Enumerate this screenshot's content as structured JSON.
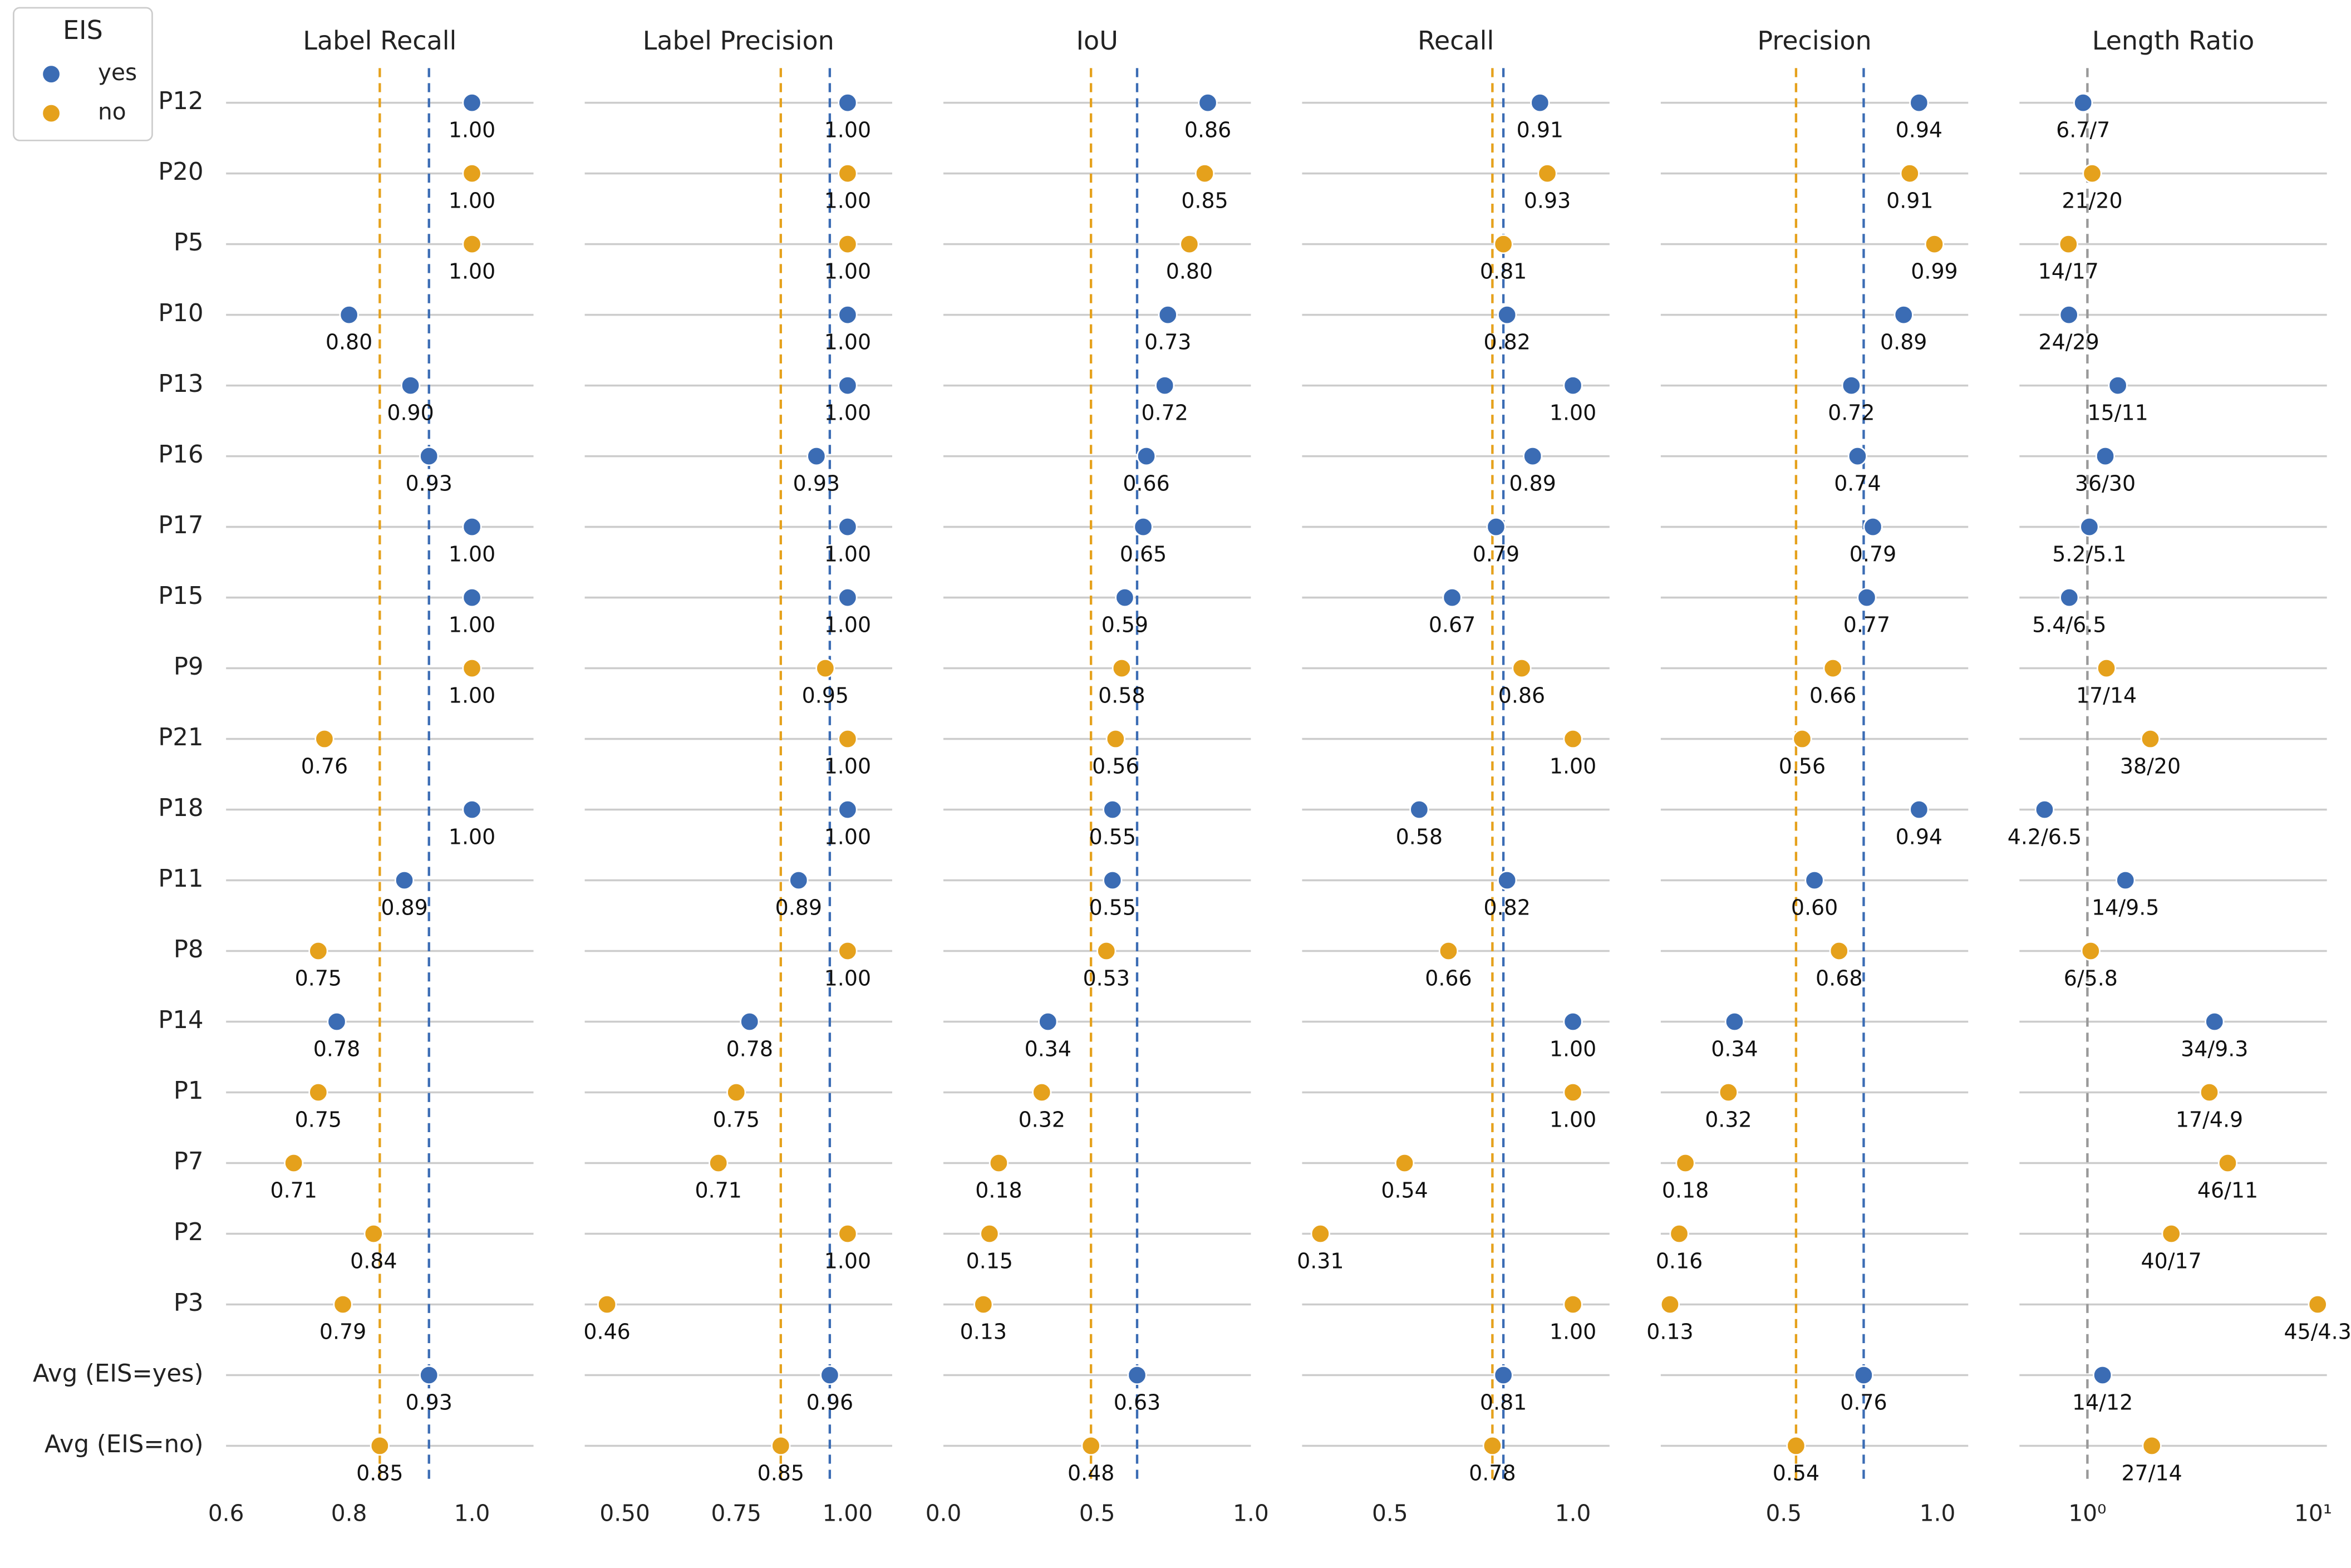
{
  "chart_data": [
    {
      "type": "dot",
      "title": "Label Recall",
      "legend_title": "EIS",
      "legend": "upper left",
      "mean_lines": true,
      "categories": [
        "P12",
        "P20",
        "P5",
        "P10",
        "P13",
        "P16",
        "P17",
        "P15",
        "P9",
        "P21",
        "P18",
        "P11",
        "P8",
        "P14",
        "P1",
        "P7",
        "P2",
        "P3",
        "Avg (EIS=yes)",
        "Avg (EIS=no)"
      ],
      "xlim": [
        0.6,
        1.1
      ],
      "xticks": [
        0.6,
        0.8,
        {
          "value": 1.0,
          "label": "1.0"
        }
      ],
      "series": [
        {
          "name": "yes",
          "color": "#3b6cb4",
          "values": [
            1,
            null,
            null,
            0.8,
            0.9,
            0.93,
            1,
            1,
            null,
            null,
            1,
            0.89,
            null,
            0.78,
            null,
            null,
            null,
            null,
            0.93,
            null
          ],
          "value_labels": [
            "1.00",
            null,
            null,
            "0.80",
            "0.90",
            "0.93",
            "1.00",
            "1.00",
            null,
            null,
            "1.00",
            "0.89",
            null,
            "0.78",
            null,
            null,
            null,
            null,
            "0.93",
            null
          ]
        },
        {
          "name": "no",
          "color": "#e5a11c",
          "values": [
            null,
            1,
            1,
            null,
            null,
            null,
            null,
            null,
            1,
            0.76,
            null,
            null,
            0.75,
            null,
            0.75,
            0.71,
            0.84,
            0.79,
            null,
            0.85
          ],
          "value_labels": [
            null,
            "1.00",
            "1.00",
            null,
            null,
            null,
            null,
            null,
            "1.00",
            "0.76",
            null,
            null,
            "0.75",
            null,
            "0.75",
            "0.71",
            "0.84",
            "0.79",
            null,
            "0.85"
          ]
        }
      ]
    },
    {
      "type": "dot",
      "title": "Label Precision",
      "mean_lines": true,
      "xlim": [
        0.41,
        1.1
      ],
      "xticks": [
        {
          "value": 0.5,
          "label": "0.50"
        },
        0.75,
        {
          "value": 1.0,
          "label": "1.00"
        }
      ],
      "series": [
        {
          "color": "#3b6cb4",
          "values": [
            1,
            null,
            null,
            1,
            1,
            0.93,
            1,
            1,
            null,
            null,
            1,
            0.89,
            null,
            0.78,
            null,
            null,
            null,
            null,
            0.96,
            null
          ],
          "value_labels": [
            "1.00",
            null,
            null,
            "1.00",
            "1.00",
            "0.93",
            "1.00",
            "1.00",
            null,
            null,
            "1.00",
            "0.89",
            null,
            "0.78",
            null,
            null,
            null,
            null,
            "0.96",
            null
          ]
        },
        {
          "color": "#e5a11c",
          "values": [
            null,
            1,
            1,
            null,
            null,
            null,
            null,
            null,
            0.95,
            1,
            null,
            null,
            1,
            null,
            0.75,
            0.71,
            1,
            0.46,
            null,
            0.85
          ],
          "value_labels": [
            null,
            "1.00",
            "1.00",
            null,
            null,
            null,
            null,
            null,
            "0.95",
            "1.00",
            null,
            null,
            "1.00",
            null,
            "0.75",
            "0.71",
            "1.00",
            "0.46",
            null,
            "0.85"
          ]
        }
      ]
    },
    {
      "type": "dot",
      "title": "IoU",
      "mean_lines": true,
      "xlim": [
        0,
        1
      ],
      "xticks": [
        {
          "value": 0,
          "label": "0.0"
        },
        0.5,
        {
          "value": 1,
          "label": "1.0"
        }
      ],
      "series": [
        {
          "color": "#3b6cb4",
          "values": [
            0.86,
            null,
            null,
            0.73,
            0.72,
            0.66,
            0.65,
            0.59,
            null,
            null,
            0.55,
            0.55,
            null,
            0.34,
            null,
            null,
            null,
            null,
            0.63,
            null
          ],
          "value_labels": [
            "0.86",
            null,
            null,
            "0.73",
            "0.72",
            "0.66",
            "0.65",
            "0.59",
            null,
            null,
            "0.55",
            "0.55",
            null,
            "0.34",
            null,
            null,
            null,
            null,
            "0.63",
            null
          ]
        },
        {
          "color": "#e5a11c",
          "values": [
            null,
            0.85,
            0.8,
            null,
            null,
            null,
            null,
            null,
            0.58,
            0.56,
            null,
            null,
            0.53,
            null,
            0.32,
            0.18,
            0.15,
            0.13,
            null,
            0.48
          ],
          "value_labels": [
            null,
            "0.85",
            "0.80",
            null,
            null,
            null,
            null,
            null,
            "0.58",
            "0.56",
            null,
            null,
            "0.53",
            null,
            "0.32",
            "0.18",
            "0.15",
            "0.13",
            null,
            "0.48"
          ]
        }
      ]
    },
    {
      "type": "dot",
      "title": "Recall",
      "mean_lines": true,
      "xlim": [
        0.26,
        1.1
      ],
      "xticks": [
        0.5,
        {
          "value": 1.0,
          "label": "1.0"
        }
      ],
      "series": [
        {
          "color": "#3b6cb4",
          "values": [
            0.91,
            null,
            null,
            0.82,
            1,
            0.89,
            0.79,
            0.67,
            null,
            null,
            0.58,
            0.82,
            null,
            1,
            null,
            null,
            null,
            null,
            0.81,
            null
          ],
          "value_labels": [
            "0.91",
            null,
            null,
            "0.82",
            "1.00",
            "0.89",
            "0.79",
            "0.67",
            null,
            null,
            "0.58",
            "0.82",
            null,
            "1.00",
            null,
            null,
            null,
            null,
            "0.81",
            null
          ]
        },
        {
          "color": "#e5a11c",
          "values": [
            null,
            0.93,
            0.81,
            null,
            null,
            null,
            null,
            null,
            0.86,
            1,
            null,
            null,
            0.66,
            null,
            1,
            0.54,
            0.31,
            1,
            null,
            0.78
          ],
          "value_labels": [
            null,
            "0.93",
            "0.81",
            null,
            null,
            null,
            null,
            null,
            "0.86",
            "1.00",
            null,
            null,
            "0.66",
            null,
            "1.00",
            "0.54",
            "0.31",
            "1.00",
            null,
            "0.78"
          ]
        }
      ]
    },
    {
      "type": "dot",
      "title": "Precision",
      "mean_lines": true,
      "xlim": [
        0.1,
        1.1
      ],
      "xticks": [
        0.5,
        {
          "value": 1.0,
          "label": "1.0"
        }
      ],
      "series": [
        {
          "color": "#3b6cb4",
          "values": [
            0.94,
            null,
            null,
            0.89,
            0.72,
            0.74,
            0.79,
            0.77,
            null,
            null,
            0.94,
            0.6,
            null,
            0.34,
            null,
            null,
            null,
            null,
            0.76,
            null
          ],
          "value_labels": [
            "0.94",
            null,
            null,
            "0.89",
            "0.72",
            "0.74",
            "0.79",
            "0.77",
            null,
            null,
            "0.94",
            "0.60",
            null,
            "0.34",
            null,
            null,
            null,
            null,
            "0.76",
            null
          ]
        },
        {
          "color": "#e5a11c",
          "values": [
            null,
            0.91,
            0.99,
            null,
            null,
            null,
            null,
            null,
            0.66,
            0.56,
            null,
            null,
            0.68,
            null,
            0.32,
            0.18,
            0.16,
            0.13,
            null,
            0.54
          ],
          "value_labels": [
            null,
            "0.91",
            "0.99",
            null,
            null,
            null,
            null,
            null,
            "0.66",
            "0.56",
            null,
            null,
            "0.68",
            null,
            "0.32",
            "0.18",
            "0.16",
            "0.13",
            null,
            "0.54"
          ]
        }
      ]
    },
    {
      "type": "dot",
      "title": "Length Ratio",
      "xscale": "log",
      "reference_line": 1,
      "reference_color": "#999999",
      "xlim": [
        0.5,
        11.5
      ],
      "xticks": [
        {
          "value": 1,
          "label": "10⁰"
        },
        {
          "value": 10,
          "label": "10¹"
        }
      ],
      "series": [
        {
          "color": "#3b6cb4",
          "values": [
            0.957,
            null,
            null,
            0.828,
            1.364,
            1.2,
            1.02,
            0.831,
            null,
            null,
            0.646,
            1.474,
            null,
            3.656,
            null,
            null,
            null,
            null,
            1.167,
            null
          ],
          "value_labels": [
            "6.7/7",
            null,
            null,
            "24/29",
            "15/11",
            "36/30",
            "5.2/5.1",
            "5.4/6.5",
            null,
            null,
            "4.2/6.5",
            "14/9.5",
            null,
            "34/9.3",
            null,
            null,
            null,
            null,
            "14/12",
            null
          ]
        },
        {
          "color": "#e5a11c",
          "values": [
            null,
            1.05,
            0.824,
            null,
            null,
            null,
            null,
            null,
            1.214,
            1.9,
            null,
            null,
            1.034,
            null,
            3.469,
            4.182,
            2.353,
            10.47,
            null,
            1.929
          ],
          "value_labels": [
            null,
            "21/20",
            "14/17",
            null,
            null,
            null,
            null,
            null,
            "17/14",
            "38/20",
            null,
            null,
            "6/5.8",
            null,
            "17/4.9",
            "46/11",
            "40/17",
            "45/4.3",
            null,
            "27/14"
          ]
        }
      ]
    }
  ]
}
